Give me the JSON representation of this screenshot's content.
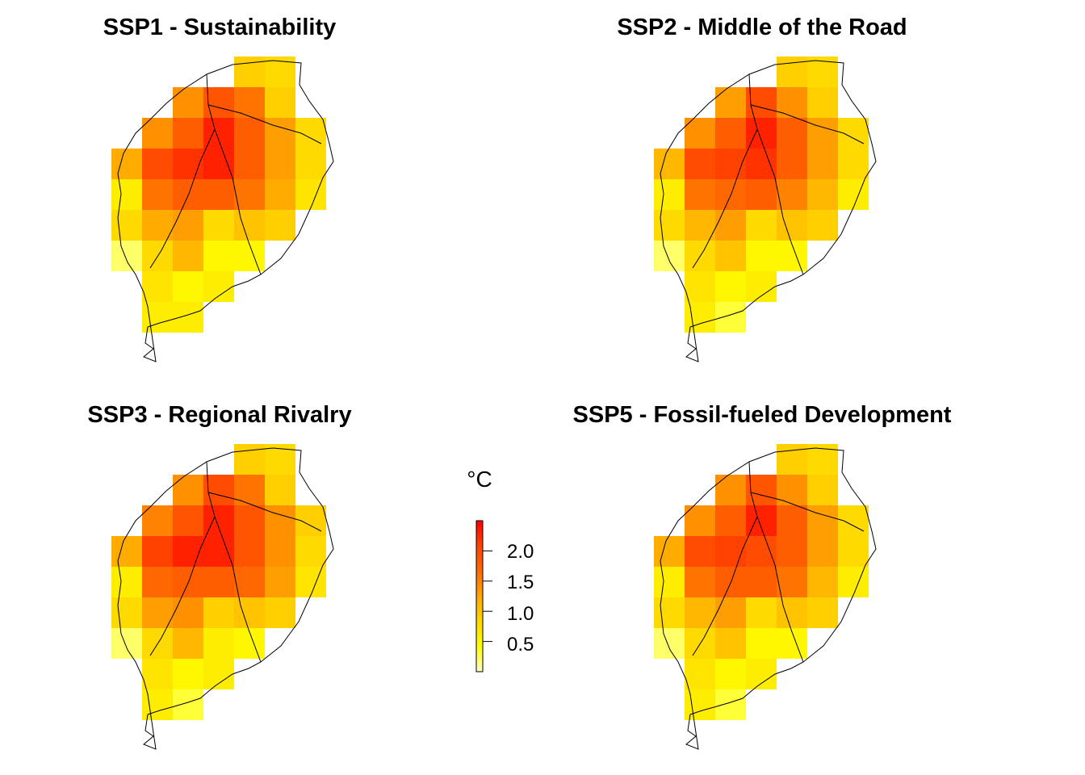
{
  "panels": [
    {
      "id": "ssp1",
      "title": "SSP1 - Sustainability"
    },
    {
      "id": "ssp2",
      "title": "SSP2 - Middle of the Road"
    },
    {
      "id": "ssp3",
      "title": "SSP3 - Regional Rivalry"
    },
    {
      "id": "ssp5",
      "title": "SSP5 - Fossil-fueled Development"
    }
  ],
  "legend": {
    "unit": "°C",
    "ticks": [
      {
        "label": "2.0",
        "value": 2.0
      },
      {
        "label": "1.5",
        "value": 1.5
      },
      {
        "label": "1.0",
        "value": 1.0
      },
      {
        "label": "0.5",
        "value": 0.5
      }
    ],
    "range": [
      0.0,
      2.5
    ],
    "colors": [
      "#FFFFCC",
      "#FFFF00",
      "#FFD700",
      "#FFA500",
      "#FF6A00",
      "#FF4500",
      "#FF0000"
    ]
  },
  "chart_data": {
    "type": "heatmap",
    "grid_rows": 10,
    "grid_cols": 7,
    "unit": "°C",
    "maps": [
      {
        "panel": "SSP1 - Sustainability",
        "values": [
          [
            null,
            null,
            null,
            null,
            0.9,
            0.8,
            null
          ],
          [
            null,
            null,
            1.4,
            1.9,
            1.6,
            0.9,
            null
          ],
          [
            null,
            1.4,
            1.8,
            2.3,
            1.8,
            1.3,
            0.8
          ],
          [
            1.2,
            2.0,
            2.2,
            2.3,
            1.8,
            1.3,
            0.8
          ],
          [
            0.6,
            1.6,
            1.8,
            1.8,
            1.6,
            1.2,
            0.7
          ],
          [
            0.8,
            1.2,
            1.3,
            0.8,
            1.0,
            0.9,
            null
          ],
          [
            0.2,
            0.8,
            1.1,
            0.5,
            0.5,
            null,
            null
          ],
          [
            null,
            0.7,
            0.5,
            0.6,
            null,
            null,
            null
          ],
          [
            null,
            0.6,
            0.6,
            null,
            null,
            null,
            null
          ],
          [
            null,
            null,
            null,
            null,
            null,
            null,
            null
          ]
        ]
      },
      {
        "panel": "SSP2 - Middle of the Road",
        "values": [
          [
            null,
            null,
            null,
            null,
            0.9,
            0.8,
            null
          ],
          [
            null,
            null,
            1.3,
            2.0,
            1.4,
            0.9,
            null
          ],
          [
            null,
            1.4,
            1.8,
            2.3,
            1.8,
            1.3,
            0.8
          ],
          [
            1.1,
            2.0,
            2.1,
            2.2,
            1.8,
            1.3,
            0.8
          ],
          [
            0.6,
            1.6,
            1.7,
            1.8,
            1.5,
            1.1,
            0.6
          ],
          [
            0.8,
            1.1,
            1.3,
            0.8,
            1.0,
            0.9,
            null
          ],
          [
            0.2,
            0.8,
            1.0,
            0.5,
            0.5,
            null,
            null
          ],
          [
            null,
            0.7,
            0.5,
            0.6,
            null,
            null,
            null
          ],
          [
            null,
            0.6,
            0.3,
            null,
            null,
            null,
            null
          ],
          [
            null,
            null,
            null,
            null,
            null,
            null,
            null
          ]
        ]
      },
      {
        "panel": "SSP3 - Regional Rivalry",
        "values": [
          [
            null,
            null,
            null,
            null,
            0.9,
            0.8,
            null
          ],
          [
            null,
            null,
            1.4,
            2.0,
            1.6,
            0.9,
            null
          ],
          [
            null,
            1.5,
            1.9,
            2.3,
            1.9,
            1.4,
            0.9
          ],
          [
            1.2,
            2.1,
            2.3,
            2.3,
            1.9,
            1.4,
            0.8
          ],
          [
            0.6,
            1.7,
            1.8,
            1.8,
            1.7,
            1.3,
            0.7
          ],
          [
            0.8,
            1.3,
            1.4,
            0.9,
            1.0,
            0.9,
            null
          ],
          [
            0.2,
            0.8,
            1.1,
            0.6,
            0.5,
            null,
            null
          ],
          [
            null,
            0.7,
            0.5,
            0.6,
            null,
            null,
            null
          ],
          [
            null,
            0.6,
            0.3,
            null,
            null,
            null,
            null
          ],
          [
            null,
            null,
            null,
            null,
            null,
            null,
            null
          ]
        ]
      },
      {
        "panel": "SSP5 - Fossil-fueled Development",
        "values": [
          [
            null,
            null,
            null,
            null,
            0.9,
            0.8,
            null
          ],
          [
            null,
            null,
            1.4,
            1.9,
            1.4,
            0.9,
            null
          ],
          [
            null,
            1.4,
            1.8,
            2.3,
            1.8,
            1.3,
            0.8
          ],
          [
            1.2,
            2.0,
            2.1,
            2.0,
            1.8,
            1.3,
            0.8
          ],
          [
            0.6,
            1.6,
            1.8,
            1.8,
            1.6,
            1.1,
            0.6
          ],
          [
            0.8,
            1.1,
            1.3,
            0.8,
            1.0,
            0.9,
            null
          ],
          [
            0.2,
            0.8,
            1.0,
            0.5,
            0.5,
            null,
            null
          ],
          [
            null,
            0.7,
            0.5,
            0.6,
            null,
            null,
            null
          ],
          [
            null,
            0.6,
            0.3,
            null,
            null,
            null,
            null
          ],
          [
            null,
            null,
            null,
            null,
            null,
            null,
            null
          ]
        ]
      }
    ]
  }
}
